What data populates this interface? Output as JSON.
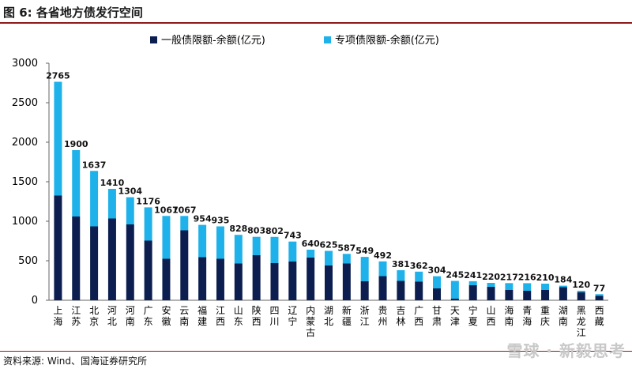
{
  "header": {
    "title": "图 6:  各省地方债发行空间"
  },
  "footer": {
    "source": "资料来源:  Wind、国海证券研究所",
    "watermark": "雪球 · 新毅思考"
  },
  "colors": {
    "general": "#0B1E4F",
    "special": "#1FB2EA",
    "rule": "#8B1A1A"
  },
  "chart_data": {
    "type": "bar",
    "stacked": true,
    "categories": [
      "上海",
      "江苏",
      "北京",
      "河北",
      "河南",
      "广东",
      "安徽",
      "云南",
      "福建",
      "江西",
      "山东",
      "陕西",
      "四川",
      "辽宁",
      "内蒙古",
      "湖北",
      "新疆",
      "浙江",
      "贵州",
      "吉林",
      "广西",
      "甘肃",
      "天津",
      "宁夏",
      "山西",
      "海南",
      "青海",
      "重庆",
      "湖南",
      "黑龙江",
      "西藏"
    ],
    "series": [
      {
        "name": "一般债限额-余额(亿元)",
        "values": [
          1325,
          1060,
          935,
          1035,
          960,
          755,
          525,
          885,
          545,
          525,
          465,
          570,
          470,
          490,
          540,
          440,
          465,
          240,
          305,
          245,
          235,
          150,
          20,
          190,
          170,
          130,
          120,
          130,
          165,
          100,
          55
        ]
      },
      {
        "name": "专项债限额-余额(亿元)",
        "values": [
          1440,
          840,
          702,
          375,
          344,
          421,
          542,
          182,
          409,
          410,
          363,
          233,
          332,
          253,
          100,
          185,
          122,
          309,
          187,
          136,
          127,
          154,
          225,
          51,
          50,
          87,
          96,
          80,
          19,
          20,
          22
        ]
      }
    ],
    "totals": [
      2765,
      1900,
      1637,
      1410,
      1304,
      1176,
      1067,
      1067,
      954,
      935,
      828,
      803,
      802,
      743,
      640,
      625,
      587,
      549,
      492,
      381,
      362,
      304,
      245,
      241,
      220,
      217,
      216,
      210,
      184,
      120,
      77
    ],
    "ylim": [
      0,
      3000
    ],
    "yticks": [
      0,
      500,
      1000,
      1500,
      2000,
      2500,
      3000
    ],
    "legend": "top"
  }
}
